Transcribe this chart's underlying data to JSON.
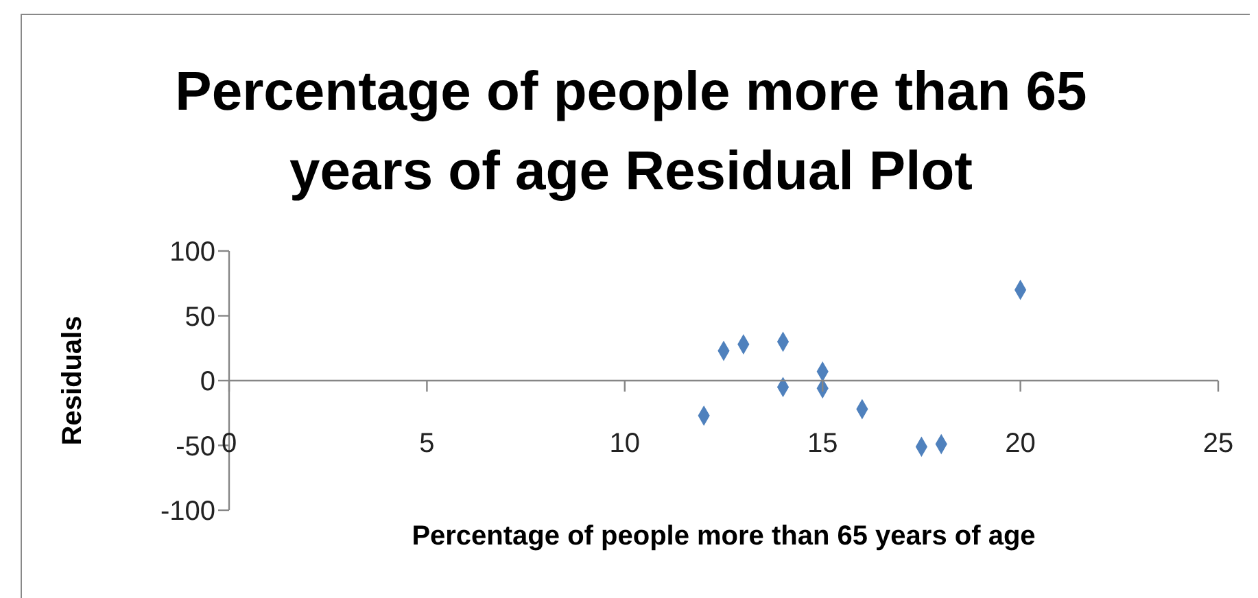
{
  "chart_data": {
    "type": "scatter",
    "title": "Percentage of people more than 65 years of age  Residual Plot",
    "xlabel": "Percentage of people more than 65 years of age",
    "ylabel": "Residuals",
    "x": [
      12,
      12.5,
      13,
      14,
      14,
      15,
      15,
      16,
      17.5,
      18,
      20
    ],
    "series": [
      {
        "color": "#4f81bd",
        "values": [
          -27,
          23,
          28,
          30,
          -5,
          7,
          -6,
          -22,
          -51,
          -49,
          70
        ]
      }
    ],
    "xlim": [
      0,
      25
    ],
    "xticks": [
      0,
      5,
      10,
      15,
      20,
      25
    ],
    "ylim": [
      -100,
      100
    ],
    "yticks": [
      -100,
      -50,
      0,
      50,
      100
    ],
    "marker": "diamond",
    "grid": false,
    "legend": false
  }
}
